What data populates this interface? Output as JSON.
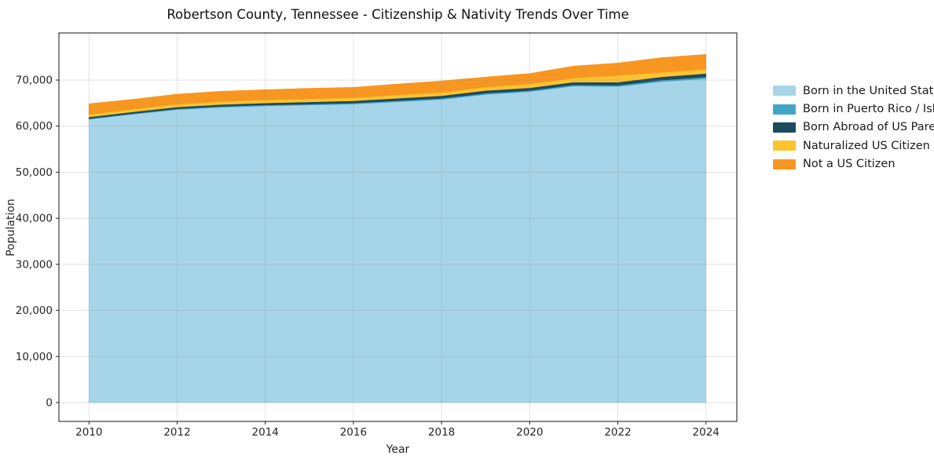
{
  "chart_data": {
    "type": "area",
    "stacked": true,
    "title": "Robertson County, Tennessee - Citizenship & Nativity Trends Over Time",
    "xlabel": "Year",
    "ylabel": "Population",
    "x": [
      2010,
      2011,
      2012,
      2013,
      2014,
      2015,
      2016,
      2017,
      2018,
      2019,
      2020,
      2021,
      2022,
      2023,
      2024
    ],
    "x_ticks": [
      2010,
      2012,
      2014,
      2016,
      2018,
      2020,
      2022,
      2024
    ],
    "y_ticks": [
      {
        "v": 0,
        "label": "0"
      },
      {
        "v": 10000,
        "label": "10,000"
      },
      {
        "v": 20000,
        "label": "20,000"
      },
      {
        "v": 30000,
        "label": "30,000"
      },
      {
        "v": 40000,
        "label": "40,000"
      },
      {
        "v": 50000,
        "label": "50,000"
      },
      {
        "v": 60000,
        "label": "60,000"
      },
      {
        "v": 70000,
        "label": "70,000"
      }
    ],
    "xlim": [
      2009.32,
      2024.68
    ],
    "ylim": [
      -4088,
      80220
    ],
    "grid": true,
    "legend_position": "outside-right",
    "series": [
      {
        "name": "Born in the United States",
        "color": "#a6d4e8",
        "values": [
          61500,
          62600,
          63600,
          64100,
          64400,
          64600,
          64800,
          65300,
          65800,
          66900,
          67500,
          68700,
          68600,
          69700,
          70300
        ]
      },
      {
        "name": "Born in Puerto Rico / Islands",
        "color": "#41a6c6",
        "values": [
          150,
          150,
          180,
          200,
          200,
          200,
          220,
          230,
          250,
          250,
          250,
          260,
          280,
          300,
          400
        ]
      },
      {
        "name": "Born Abroad of US Parent(s)",
        "color": "#1d4a5f",
        "values": [
          350,
          380,
          400,
          430,
          450,
          480,
          500,
          540,
          570,
          600,
          600,
          620,
          680,
          740,
          750
        ]
      },
      {
        "name": "Naturalized US Citizen",
        "color": "#fdc42f",
        "values": [
          550,
          580,
          600,
          620,
          650,
          660,
          680,
          700,
          720,
          750,
          800,
          850,
          1480,
          960,
          950
        ]
      },
      {
        "name": "Not a US Citizen",
        "color": "#f89622",
        "values": [
          2300,
          2100,
          2150,
          2200,
          2200,
          2250,
          2200,
          2350,
          2450,
          2150,
          2250,
          2600,
          2650,
          3150,
          3150
        ]
      }
    ],
    "totals": [
      64850,
      65810,
      66930,
      67550,
      67900,
      68190,
      68400,
      69120,
      69790,
      70650,
      71400,
      73030,
      73690,
      74850,
      75550
    ],
    "colors": {
      "grid": "rgba(140,140,140,0.28)",
      "spine": "#262626",
      "tick_label": "#262626"
    }
  }
}
